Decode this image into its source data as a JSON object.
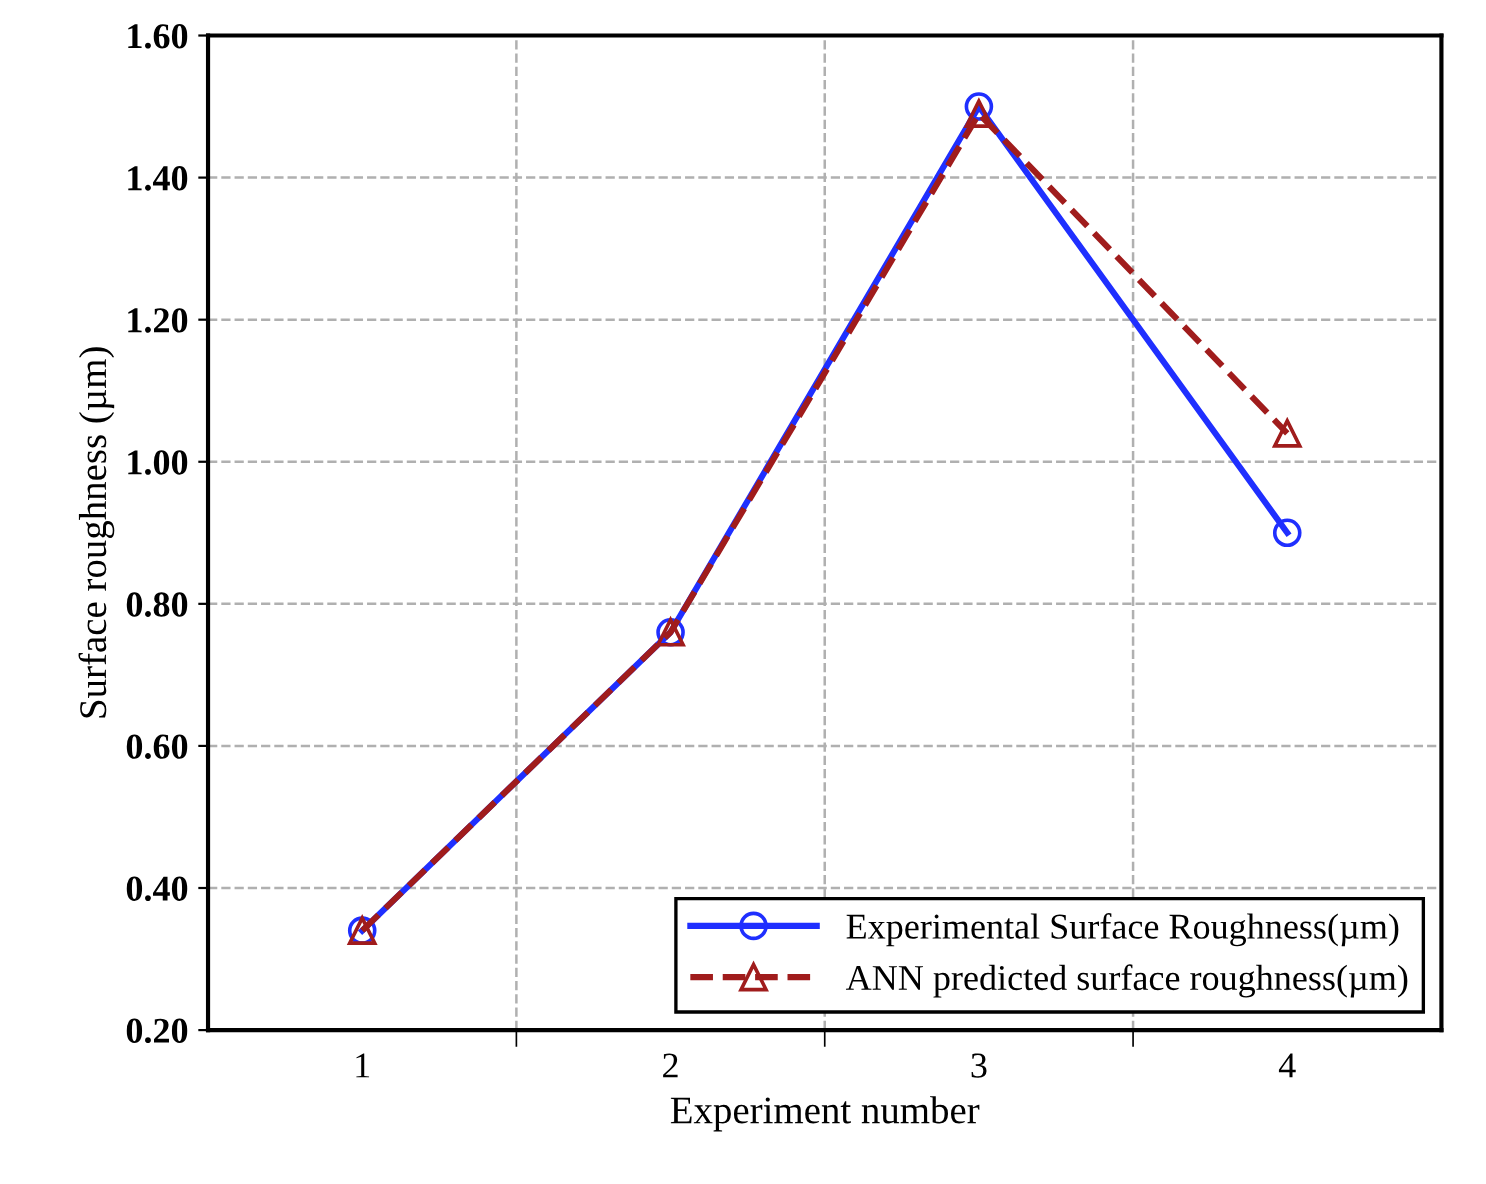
{
  "chart_data": {
    "type": "line",
    "xlabel": "Experiment number",
    "ylabel": "Surface roughness (µm)",
    "categories": [
      "1",
      "2",
      "3",
      "4"
    ],
    "series": [
      {
        "name": "Experimental Surface Roughness(µm)",
        "color": "#1f2fff",
        "values": [
          0.34,
          0.76,
          1.5,
          0.9
        ],
        "marker": "circle",
        "line_style": "solid"
      },
      {
        "name": "ANN predicted surface roughness(µm)",
        "color": "#a01c1c",
        "values": [
          0.34,
          0.76,
          1.49,
          1.04
        ],
        "marker": "triangle",
        "line_style": "dashed"
      }
    ],
    "ylim": [
      0.2,
      1.6
    ],
    "yticks": [
      {
        "value": 0.2,
        "label": "0.20"
      },
      {
        "value": 0.4,
        "label": "0.40"
      },
      {
        "value": 0.6,
        "label": "0.60"
      },
      {
        "value": 0.8,
        "label": "0.80"
      },
      {
        "value": 1.0,
        "label": "1.00"
      },
      {
        "value": 1.2,
        "label": "1.20"
      },
      {
        "value": 1.4,
        "label": "1.40"
      },
      {
        "value": 1.6,
        "label": "1.60"
      }
    ],
    "grid": true,
    "legend": "bottom right"
  }
}
